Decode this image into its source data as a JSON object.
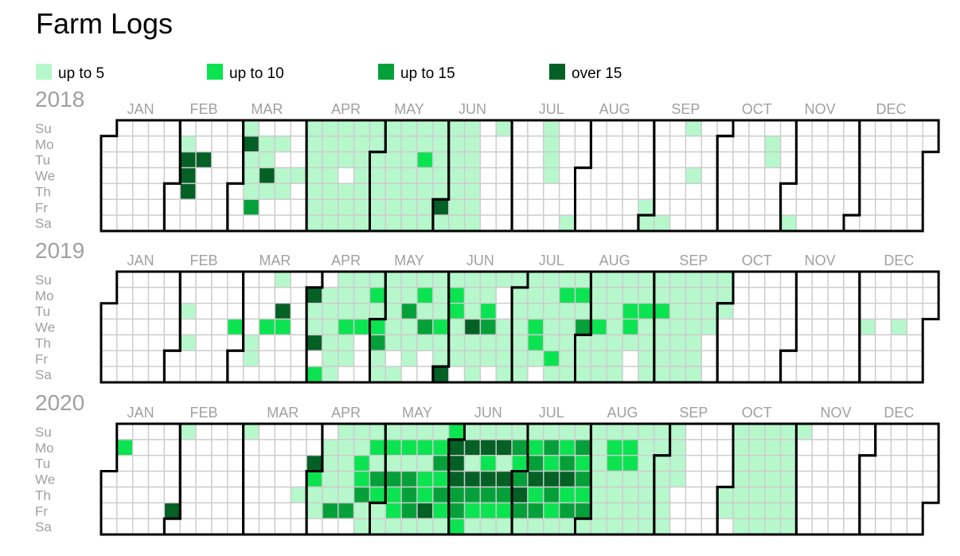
{
  "title": "Farm Logs",
  "legend": [
    {
      "label": "up to 5",
      "color": "#b6f8cc"
    },
    {
      "label": "up to 10",
      "color": "#0be351"
    },
    {
      "label": "up to 15",
      "color": "#06a03a"
    },
    {
      "label": "over 15",
      "color": "#046025"
    }
  ],
  "colors": {
    "cell_border": "#cccccc",
    "month_border": "#000000",
    "axis_text": "#a0a0a0",
    "empty_fill": "#ffffff"
  },
  "weekday_labels": [
    "Su",
    "Mo",
    "Tu",
    "We",
    "Th",
    "Fr",
    "Sa"
  ],
  "month_labels": [
    "JAN",
    "FEB",
    "MAR",
    "APR",
    "MAY",
    "JUN",
    "JUL",
    "AUG",
    "SEP",
    "OCT",
    "NOV",
    "DEC"
  ],
  "chart_data": {
    "type": "heatmap",
    "title": "Farm Logs",
    "value_scale": "levels: 1 = up to 5, 2 = up to 10, 3 = up to 15, 4 = over 15",
    "years": [
      {
        "year": "2018",
        "days": {
          "2018-02-05": 1,
          "2018-02-06": 4,
          "2018-02-07": 4,
          "2018-02-08": 4,
          "2018-02-13": 4,
          "2018-03-04": 1,
          "2018-03-05": 4,
          "2018-03-06": 1,
          "2018-03-07": 1,
          "2018-03-08": 1,
          "2018-03-09": 3,
          "2018-03-12": 1,
          "2018-03-13": 1,
          "2018-03-14": 4,
          "2018-03-15": 1,
          "2018-03-19": 1,
          "2018-03-21": 1,
          "2018-03-22": 1,
          "2018-03-28": 1,
          "2018-04-01": 1,
          "2018-04-02": 1,
          "2018-04-03": 1,
          "2018-04-04": 1,
          "2018-04-05": 1,
          "2018-04-06": 1,
          "2018-04-07": 1,
          "2018-04-08": 1,
          "2018-04-09": 1,
          "2018-04-10": 1,
          "2018-04-11": 1,
          "2018-04-12": 1,
          "2018-04-13": 1,
          "2018-04-14": 1,
          "2018-04-15": 1,
          "2018-04-16": 1,
          "2018-04-17": 1,
          "2018-04-19": 1,
          "2018-04-20": 1,
          "2018-04-21": 1,
          "2018-04-22": 1,
          "2018-04-23": 1,
          "2018-04-24": 1,
          "2018-04-25": 1,
          "2018-04-26": 1,
          "2018-04-27": 1,
          "2018-04-28": 1,
          "2018-04-29": 1,
          "2018-04-30": 1,
          "2018-05-01": 1,
          "2018-05-02": 1,
          "2018-05-03": 1,
          "2018-05-04": 1,
          "2018-05-05": 1,
          "2018-05-06": 1,
          "2018-05-07": 1,
          "2018-05-08": 1,
          "2018-05-09": 1,
          "2018-05-10": 1,
          "2018-05-11": 1,
          "2018-05-12": 1,
          "2018-05-13": 1,
          "2018-05-14": 1,
          "2018-05-15": 1,
          "2018-05-16": 1,
          "2018-05-17": 1,
          "2018-05-18": 1,
          "2018-05-19": 1,
          "2018-05-20": 1,
          "2018-05-21": 1,
          "2018-05-22": 2,
          "2018-05-23": 1,
          "2018-05-24": 1,
          "2018-05-25": 1,
          "2018-05-26": 1,
          "2018-05-27": 1,
          "2018-05-28": 1,
          "2018-05-29": 1,
          "2018-05-30": 1,
          "2018-05-31": 1,
          "2018-06-01": 4,
          "2018-06-02": 1,
          "2018-06-03": 1,
          "2018-06-04": 1,
          "2018-06-05": 1,
          "2018-06-06": 1,
          "2018-06-07": 1,
          "2018-06-08": 1,
          "2018-06-09": 1,
          "2018-06-10": 1,
          "2018-06-11": 1,
          "2018-06-12": 1,
          "2018-06-13": 1,
          "2018-06-14": 1,
          "2018-06-15": 1,
          "2018-06-16": 1,
          "2018-06-24": 1,
          "2018-07-15": 1,
          "2018-07-16": 1,
          "2018-07-17": 1,
          "2018-07-18": 1,
          "2018-07-28": 1,
          "2018-08-31": 1,
          "2018-09-01": 1,
          "2018-09-08": 1,
          "2018-09-16": 1,
          "2018-09-19": 1,
          "2018-10-22": 1,
          "2018-10-23": 1,
          "2018-11-03": 1
        }
      },
      {
        "year": "2019",
        "days": {
          "2019-02-05": 1,
          "2019-02-07": 1,
          "2019-02-27": 2,
          "2019-03-07": 1,
          "2019-03-08": 1,
          "2019-03-13": 2,
          "2019-03-17": 1,
          "2019-03-19": 4,
          "2019-03-20": 2,
          "2019-04-01": 4,
          "2019-04-02": 1,
          "2019-04-03": 1,
          "2019-04-04": 4,
          "2019-04-06": 2,
          "2019-04-08": 1,
          "2019-04-09": 1,
          "2019-04-10": 1,
          "2019-04-11": 1,
          "2019-04-12": 1,
          "2019-04-13": 1,
          "2019-04-14": 1,
          "2019-04-15": 1,
          "2019-04-16": 1,
          "2019-04-17": 2,
          "2019-04-18": 1,
          "2019-04-19": 1,
          "2019-04-21": 1,
          "2019-04-22": 1,
          "2019-04-23": 1,
          "2019-04-24": 2,
          "2019-04-28": 1,
          "2019-04-29": 2,
          "2019-04-30": 1,
          "2019-05-01": 2,
          "2019-05-02": 3,
          "2019-05-03": 1,
          "2019-05-04": 1,
          "2019-05-05": 1,
          "2019-05-06": 1,
          "2019-05-07": 1,
          "2019-05-08": 1,
          "2019-05-09": 1,
          "2019-05-11": 1,
          "2019-05-12": 1,
          "2019-05-13": 1,
          "2019-05-14": 3,
          "2019-05-15": 1,
          "2019-05-16": 1,
          "2019-05-17": 1,
          "2019-05-19": 1,
          "2019-05-20": 2,
          "2019-05-21": 1,
          "2019-05-22": 3,
          "2019-05-23": 1,
          "2019-05-26": 1,
          "2019-05-27": 1,
          "2019-05-28": 1,
          "2019-05-29": 2,
          "2019-05-30": 1,
          "2019-05-31": 1,
          "2019-06-01": 4,
          "2019-06-02": 1,
          "2019-06-03": 2,
          "2019-06-04": 2,
          "2019-06-05": 1,
          "2019-06-06": 1,
          "2019-06-07": 1,
          "2019-06-09": 1,
          "2019-06-10": 1,
          "2019-06-11": 1,
          "2019-06-12": 4,
          "2019-06-13": 1,
          "2019-06-14": 1,
          "2019-06-15": 1,
          "2019-06-16": 1,
          "2019-06-17": 1,
          "2019-06-18": 2,
          "2019-06-19": 3,
          "2019-06-20": 1,
          "2019-06-21": 1,
          "2019-06-23": 1,
          "2019-06-26": 1,
          "2019-06-27": 1,
          "2019-06-28": 1,
          "2019-06-29": 1,
          "2019-06-30": 1,
          "2019-07-01": 1,
          "2019-07-02": 1,
          "2019-07-03": 1,
          "2019-07-04": 1,
          "2019-07-05": 1,
          "2019-07-06": 1,
          "2019-07-07": 1,
          "2019-07-08": 1,
          "2019-07-09": 1,
          "2019-07-10": 2,
          "2019-07-11": 2,
          "2019-07-12": 1,
          "2019-07-14": 1,
          "2019-07-15": 1,
          "2019-07-16": 1,
          "2019-07-17": 1,
          "2019-07-18": 1,
          "2019-07-19": 2,
          "2019-07-20": 1,
          "2019-07-21": 1,
          "2019-07-22": 2,
          "2019-07-23": 1,
          "2019-07-24": 1,
          "2019-07-25": 1,
          "2019-07-26": 1,
          "2019-07-27": 1,
          "2019-07-28": 1,
          "2019-07-29": 2,
          "2019-07-30": 1,
          "2019-07-31": 3,
          "2019-08-01": 1,
          "2019-08-02": 1,
          "2019-08-03": 1,
          "2019-08-04": 1,
          "2019-08-05": 1,
          "2019-08-06": 1,
          "2019-08-07": 2,
          "2019-08-08": 1,
          "2019-08-09": 1,
          "2019-08-10": 1,
          "2019-08-11": 1,
          "2019-08-12": 1,
          "2019-08-13": 1,
          "2019-08-14": 1,
          "2019-08-15": 1,
          "2019-08-16": 1,
          "2019-08-17": 1,
          "2019-08-18": 1,
          "2019-08-19": 1,
          "2019-08-20": 2,
          "2019-08-21": 2,
          "2019-08-22": 1,
          "2019-08-25": 1,
          "2019-08-26": 1,
          "2019-08-27": 2,
          "2019-08-28": 1,
          "2019-08-29": 1,
          "2019-08-30": 1,
          "2019-08-31": 1,
          "2019-09-01": 1,
          "2019-09-02": 1,
          "2019-09-03": 2,
          "2019-09-04": 1,
          "2019-09-05": 1,
          "2019-09-06": 1,
          "2019-09-07": 1,
          "2019-09-08": 1,
          "2019-09-09": 1,
          "2019-09-10": 1,
          "2019-09-11": 1,
          "2019-09-12": 1,
          "2019-09-13": 1,
          "2019-09-14": 1,
          "2019-09-15": 1,
          "2019-09-16": 1,
          "2019-09-17": 1,
          "2019-09-18": 1,
          "2019-09-19": 1,
          "2019-09-20": 1,
          "2019-09-21": 1,
          "2019-09-22": 1,
          "2019-09-23": 1,
          "2019-09-24": 1,
          "2019-09-25": 1,
          "2019-09-29": 1,
          "2019-09-30": 1,
          "2019-10-01": 1,
          "2019-12-04": 1,
          "2019-12-18": 1
        }
      },
      {
        "year": "2020",
        "days": {
          "2020-01-06": 2,
          "2020-01-31": 4,
          "2020-02-02": 1,
          "2020-03-01": 1,
          "2020-03-26": 1,
          "2020-03-31": 4,
          "2020-04-01": 2,
          "2020-04-02": 1,
          "2020-04-03": 1,
          "2020-04-06": 1,
          "2020-04-07": 1,
          "2020-04-08": 1,
          "2020-04-09": 1,
          "2020-04-10": 3,
          "2020-04-12": 1,
          "2020-04-13": 1,
          "2020-04-14": 1,
          "2020-04-15": 1,
          "2020-04-16": 1,
          "2020-04-17": 3,
          "2020-04-19": 1,
          "2020-04-20": 1,
          "2020-04-21": 2,
          "2020-04-22": 2,
          "2020-04-23": 3,
          "2020-04-24": 1,
          "2020-04-25": 1,
          "2020-04-26": 1,
          "2020-04-27": 2,
          "2020-04-28": 1,
          "2020-04-29": 3,
          "2020-04-30": 2,
          "2020-05-01": 1,
          "2020-05-02": 1,
          "2020-05-03": 1,
          "2020-05-04": 2,
          "2020-05-05": 1,
          "2020-05-06": 3,
          "2020-05-07": 2,
          "2020-05-08": 2,
          "2020-05-09": 1,
          "2020-05-10": 1,
          "2020-05-11": 2,
          "2020-05-12": 1,
          "2020-05-13": 3,
          "2020-05-14": 3,
          "2020-05-15": 3,
          "2020-05-16": 1,
          "2020-05-17": 1,
          "2020-05-18": 2,
          "2020-05-19": 1,
          "2020-05-20": 2,
          "2020-05-21": 2,
          "2020-05-22": 4,
          "2020-05-23": 1,
          "2020-05-24": 1,
          "2020-05-25": 2,
          "2020-05-26": 3,
          "2020-05-27": 2,
          "2020-05-28": 3,
          "2020-05-29": 2,
          "2020-05-30": 1,
          "2020-05-31": 2,
          "2020-06-01": 4,
          "2020-06-02": 4,
          "2020-06-03": 4,
          "2020-06-04": 3,
          "2020-06-05": 3,
          "2020-06-06": 2,
          "2020-06-07": 1,
          "2020-06-08": 4,
          "2020-06-09": 1,
          "2020-06-10": 4,
          "2020-06-11": 3,
          "2020-06-12": 2,
          "2020-06-13": 1,
          "2020-06-14": 1,
          "2020-06-15": 4,
          "2020-06-16": 2,
          "2020-06-17": 4,
          "2020-06-18": 3,
          "2020-06-19": 2,
          "2020-06-20": 1,
          "2020-06-21": 1,
          "2020-06-22": 4,
          "2020-06-23": 1,
          "2020-06-24": 4,
          "2020-06-25": 3,
          "2020-06-26": 2,
          "2020-06-27": 1,
          "2020-06-28": 1,
          "2020-06-29": 3,
          "2020-06-30": 2,
          "2020-07-01": 3,
          "2020-07-02": 4,
          "2020-07-03": 3,
          "2020-07-04": 1,
          "2020-07-05": 1,
          "2020-07-06": 2,
          "2020-07-07": 3,
          "2020-07-08": 4,
          "2020-07-09": 2,
          "2020-07-10": 3,
          "2020-07-11": 1,
          "2020-07-12": 1,
          "2020-07-13": 3,
          "2020-07-14": 2,
          "2020-07-15": 4,
          "2020-07-16": 3,
          "2020-07-17": 2,
          "2020-07-18": 1,
          "2020-07-19": 1,
          "2020-07-20": 2,
          "2020-07-21": 3,
          "2020-07-22": 4,
          "2020-07-23": 2,
          "2020-07-24": 3,
          "2020-07-25": 1,
          "2020-07-26": 1,
          "2020-07-27": 3,
          "2020-07-28": 2,
          "2020-07-29": 3,
          "2020-07-30": 2,
          "2020-07-31": 3,
          "2020-08-01": 1,
          "2020-08-02": 1,
          "2020-08-03": 1,
          "2020-08-04": 1,
          "2020-08-05": 1,
          "2020-08-06": 1,
          "2020-08-07": 1,
          "2020-08-08": 1,
          "2020-08-09": 1,
          "2020-08-10": 2,
          "2020-08-11": 2,
          "2020-08-12": 1,
          "2020-08-13": 1,
          "2020-08-14": 1,
          "2020-08-15": 1,
          "2020-08-16": 1,
          "2020-08-17": 2,
          "2020-08-18": 2,
          "2020-08-19": 1,
          "2020-08-20": 1,
          "2020-08-21": 1,
          "2020-08-22": 1,
          "2020-08-23": 1,
          "2020-08-24": 1,
          "2020-08-25": 1,
          "2020-08-26": 1,
          "2020-08-27": 1,
          "2020-08-28": 1,
          "2020-08-29": 1,
          "2020-08-30": 1,
          "2020-08-31": 1,
          "2020-09-01": 1,
          "2020-09-02": 1,
          "2020-09-03": 1,
          "2020-09-04": 1,
          "2020-09-05": 1,
          "2020-09-06": 1,
          "2020-09-07": 1,
          "2020-09-08": 1,
          "2020-09-09": 1,
          "2020-10-01": 1,
          "2020-10-02": 1,
          "2020-10-04": 1,
          "2020-10-05": 1,
          "2020-10-06": 1,
          "2020-10-07": 1,
          "2020-10-08": 1,
          "2020-10-09": 1,
          "2020-10-10": 1,
          "2020-10-11": 1,
          "2020-10-12": 1,
          "2020-10-13": 1,
          "2020-10-14": 1,
          "2020-10-15": 1,
          "2020-10-16": 1,
          "2020-10-17": 1,
          "2020-10-18": 1,
          "2020-10-19": 1,
          "2020-10-20": 1,
          "2020-10-21": 1,
          "2020-10-22": 1,
          "2020-10-23": 1,
          "2020-10-24": 1,
          "2020-10-25": 1,
          "2020-10-26": 1,
          "2020-10-27": 1,
          "2020-10-28": 1,
          "2020-10-29": 1,
          "2020-10-30": 1,
          "2020-10-31": 1,
          "2020-11-01": 1
        }
      }
    ]
  }
}
